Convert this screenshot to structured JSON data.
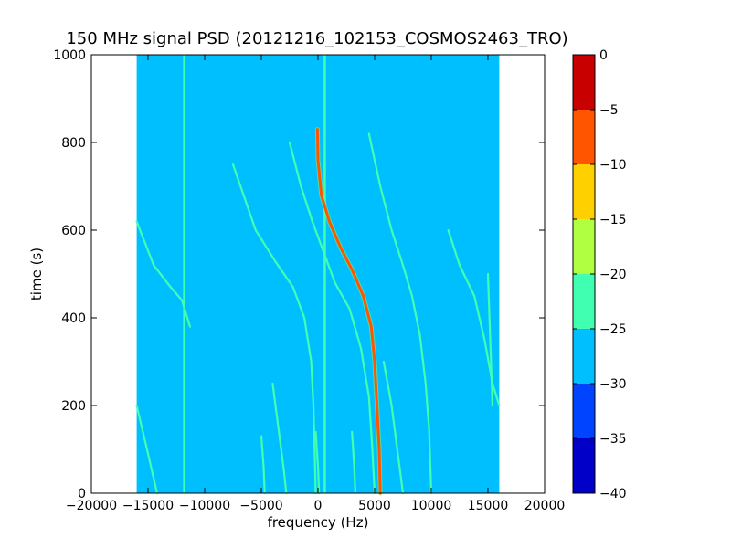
{
  "chart_data": {
    "type": "heatmap",
    "title": "150 MHz signal PSD (20121216_102153_COSMOS2463_TRO)",
    "xlabel": "frequency (Hz)",
    "ylabel": "time (s)",
    "xlim": [
      -20000,
      20000
    ],
    "ylim": [
      0,
      1000
    ],
    "x_ticks": [
      -20000,
      -15000,
      -10000,
      -5000,
      0,
      5000,
      10000,
      15000,
      20000
    ],
    "x_tick_labels": [
      "−20000",
      "−15000",
      "−10000",
      "−5000",
      "0",
      "5000",
      "10000",
      "15000",
      "20000"
    ],
    "y_ticks": [
      0,
      200,
      400,
      600,
      800,
      1000
    ],
    "y_tick_labels": [
      "0",
      "200",
      "400",
      "600",
      "800",
      "1000"
    ],
    "data_extent": {
      "freq_hz": [
        -16000,
        16000
      ],
      "time_s": [
        0,
        1000
      ]
    },
    "background_level": [
      -30,
      -25
    ],
    "colorbar": {
      "levels": [
        -40,
        -35,
        -30,
        -25,
        -20,
        -15,
        -10,
        -5,
        0
      ],
      "tick_labels": [
        "−40",
        "−35",
        "−30",
        "−25",
        "−20",
        "−15",
        "−10",
        "−5",
        "0"
      ],
      "colors": [
        "#0000c8",
        "#0044ff",
        "#00bfff",
        "#40ffb0",
        "#b0ff40",
        "#ffd000",
        "#ff5500",
        "#c80000"
      ]
    },
    "vertical_lines": [
      {
        "freq_hz": -11800,
        "level": [
          -25,
          -20
        ]
      },
      {
        "freq_hz": 600,
        "level": [
          -25,
          -20
        ]
      }
    ],
    "traces": [
      {
        "level": [
          -10,
          -5
        ],
        "points": [
          [
            -50,
            830
          ],
          [
            0,
            760
          ],
          [
            300,
            680
          ],
          [
            1000,
            620
          ],
          [
            2000,
            560
          ],
          [
            3000,
            510
          ],
          [
            4000,
            450
          ],
          [
            4700,
            380
          ],
          [
            5000,
            300
          ],
          [
            5200,
            200
          ],
          [
            5400,
            100
          ],
          [
            5500,
            0
          ]
        ]
      },
      {
        "level": [
          -25,
          -20
        ],
        "points": [
          [
            -16000,
            200
          ],
          [
            -15000,
            90
          ],
          [
            -14200,
            0
          ]
        ]
      },
      {
        "level": [
          -25,
          -20
        ],
        "points": [
          [
            -16000,
            620
          ],
          [
            -14500,
            520
          ],
          [
            -13000,
            470
          ],
          [
            -12000,
            440
          ],
          [
            -11300,
            380
          ]
        ]
      },
      {
        "level": [
          -25,
          -20
        ],
        "points": [
          [
            -7500,
            750
          ],
          [
            -5500,
            600
          ],
          [
            -3800,
            530
          ],
          [
            -2200,
            470
          ],
          [
            -1200,
            400
          ],
          [
            -600,
            300
          ],
          [
            -400,
            200
          ],
          [
            -300,
            100
          ],
          [
            -200,
            0
          ]
        ]
      },
      {
        "level": [
          -25,
          -20
        ],
        "points": [
          [
            -2500,
            800
          ],
          [
            -1500,
            700
          ],
          [
            -500,
            620
          ],
          [
            500,
            550
          ],
          [
            1500,
            480
          ],
          [
            2800,
            420
          ],
          [
            3800,
            330
          ],
          [
            4500,
            220
          ],
          [
            4800,
            100
          ],
          [
            5000,
            0
          ]
        ]
      },
      {
        "level": [
          -25,
          -20
        ],
        "points": [
          [
            4500,
            820
          ],
          [
            5500,
            700
          ],
          [
            6500,
            600
          ],
          [
            7500,
            520
          ],
          [
            8300,
            450
          ],
          [
            9000,
            360
          ],
          [
            9500,
            250
          ],
          [
            9800,
            150
          ],
          [
            10000,
            0
          ]
        ]
      },
      {
        "level": [
          -25,
          -20
        ],
        "points": [
          [
            11500,
            600
          ],
          [
            12500,
            520
          ],
          [
            13800,
            450
          ],
          [
            14700,
            350
          ],
          [
            15400,
            250
          ],
          [
            16000,
            200
          ]
        ]
      },
      {
        "level": [
          -25,
          -20
        ],
        "points": [
          [
            -4000,
            250
          ],
          [
            -3500,
            150
          ],
          [
            -3000,
            50
          ],
          [
            -2800,
            0
          ]
        ]
      },
      {
        "level": [
          -25,
          -20
        ],
        "points": [
          [
            5800,
            300
          ],
          [
            6500,
            200
          ],
          [
            7000,
            100
          ],
          [
            7500,
            0
          ]
        ]
      },
      {
        "level": [
          -25,
          -20
        ],
        "points": [
          [
            -5000,
            130
          ],
          [
            -4800,
            60
          ],
          [
            -4700,
            0
          ]
        ]
      },
      {
        "level": [
          -25,
          -20
        ],
        "points": [
          [
            3000,
            140
          ],
          [
            3200,
            60
          ],
          [
            3300,
            0
          ]
        ]
      },
      {
        "level": [
          -25,
          -20
        ],
        "points": [
          [
            15000,
            500
          ],
          [
            15200,
            350
          ],
          [
            15400,
            200
          ]
        ]
      },
      {
        "level": [
          -25,
          -20
        ],
        "points": [
          [
            -200,
            140
          ],
          [
            0,
            60
          ],
          [
            100,
            0
          ]
        ]
      }
    ]
  }
}
